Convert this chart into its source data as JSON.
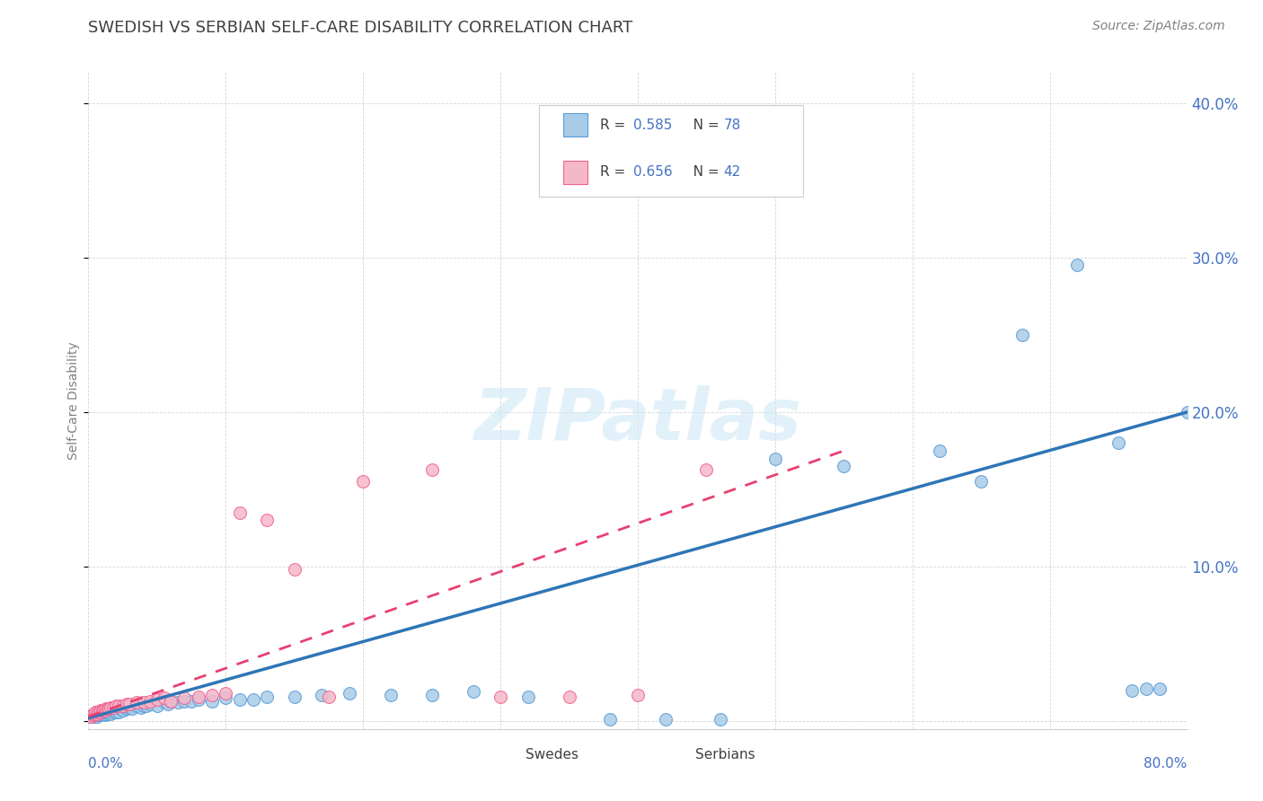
{
  "title": "SWEDISH VS SERBIAN SELF-CARE DISABILITY CORRELATION CHART",
  "source": "Source: ZipAtlas.com",
  "ylabel": "Self-Care Disability",
  "xlim": [
    0.0,
    0.8
  ],
  "ylim": [
    -0.005,
    0.42
  ],
  "yticks": [
    0.0,
    0.1,
    0.2,
    0.3,
    0.4
  ],
  "ytick_labels": [
    "",
    "10.0%",
    "20.0%",
    "30.0%",
    "40.0%"
  ],
  "swedes_color": "#a8cce8",
  "serbians_color": "#f5b8c8",
  "swedes_edge_color": "#5b9bd5",
  "serbians_edge_color": "#f06090",
  "swedes_line_color": "#2e75b6",
  "serbians_line_color": "#e84070",
  "background_color": "#ffffff",
  "grid_color": "#d0d0d0",
  "title_color": "#404040",
  "source_color": "#808080",
  "axis_label_color": "#808080",
  "tick_label_color": "#4472c4",
  "watermark_color": "#d0e8f5",
  "legend_r1": "0.585",
  "legend_n1": "78",
  "legend_r2": "0.656",
  "legend_n2": "42",
  "sw_x": [
    0.002,
    0.003,
    0.004,
    0.004,
    0.005,
    0.005,
    0.006,
    0.006,
    0.007,
    0.007,
    0.008,
    0.009,
    0.01,
    0.01,
    0.011,
    0.011,
    0.012,
    0.012,
    0.013,
    0.013,
    0.014,
    0.014,
    0.015,
    0.015,
    0.016,
    0.016,
    0.017,
    0.018,
    0.018,
    0.019,
    0.02,
    0.021,
    0.022,
    0.023,
    0.025,
    0.027,
    0.028,
    0.03,
    0.032,
    0.035,
    0.038,
    0.04,
    0.042,
    0.045,
    0.05,
    0.055,
    0.058,
    0.06,
    0.065,
    0.07,
    0.075,
    0.08,
    0.09,
    0.1,
    0.11,
    0.12,
    0.13,
    0.15,
    0.17,
    0.19,
    0.22,
    0.25,
    0.28,
    0.32,
    0.38,
    0.42,
    0.46,
    0.5,
    0.55,
    0.62,
    0.65,
    0.68,
    0.72,
    0.75,
    0.76,
    0.77,
    0.78,
    0.8
  ],
  "sw_y": [
    0.003,
    0.004,
    0.003,
    0.005,
    0.004,
    0.005,
    0.003,
    0.006,
    0.004,
    0.005,
    0.005,
    0.004,
    0.005,
    0.006,
    0.005,
    0.006,
    0.004,
    0.007,
    0.005,
    0.006,
    0.006,
    0.007,
    0.006,
    0.007,
    0.005,
    0.008,
    0.006,
    0.007,
    0.008,
    0.007,
    0.006,
    0.007,
    0.006,
    0.008,
    0.007,
    0.009,
    0.008,
    0.009,
    0.008,
    0.01,
    0.009,
    0.01,
    0.01,
    0.011,
    0.01,
    0.012,
    0.011,
    0.013,
    0.012,
    0.013,
    0.013,
    0.014,
    0.013,
    0.015,
    0.014,
    0.014,
    0.016,
    0.016,
    0.017,
    0.018,
    0.017,
    0.017,
    0.019,
    0.016,
    0.001,
    0.001,
    0.001,
    0.17,
    0.165,
    0.175,
    0.155,
    0.25,
    0.295,
    0.18,
    0.02,
    0.021,
    0.021,
    0.2
  ],
  "se_x": [
    0.002,
    0.003,
    0.004,
    0.005,
    0.005,
    0.006,
    0.007,
    0.008,
    0.009,
    0.01,
    0.011,
    0.012,
    0.013,
    0.014,
    0.015,
    0.016,
    0.018,
    0.02,
    0.022,
    0.025,
    0.028,
    0.03,
    0.035,
    0.04,
    0.045,
    0.05,
    0.055,
    0.06,
    0.07,
    0.08,
    0.09,
    0.1,
    0.11,
    0.13,
    0.15,
    0.175,
    0.2,
    0.25,
    0.3,
    0.35,
    0.4,
    0.45
  ],
  "se_y": [
    0.003,
    0.004,
    0.004,
    0.005,
    0.006,
    0.005,
    0.006,
    0.006,
    0.007,
    0.007,
    0.007,
    0.007,
    0.008,
    0.008,
    0.008,
    0.009,
    0.009,
    0.01,
    0.01,
    0.01,
    0.011,
    0.011,
    0.012,
    0.012,
    0.013,
    0.014,
    0.015,
    0.013,
    0.015,
    0.016,
    0.017,
    0.018,
    0.135,
    0.13,
    0.098,
    0.016,
    0.155,
    0.163,
    0.016,
    0.016,
    0.017,
    0.163
  ],
  "sw_line_x0": 0.0,
  "sw_line_x1": 0.8,
  "sw_line_y0": 0.002,
  "sw_line_y1": 0.2,
  "se_line_x0": 0.0,
  "se_line_x1": 0.55,
  "se_line_y0": 0.003,
  "se_line_y1": 0.175
}
